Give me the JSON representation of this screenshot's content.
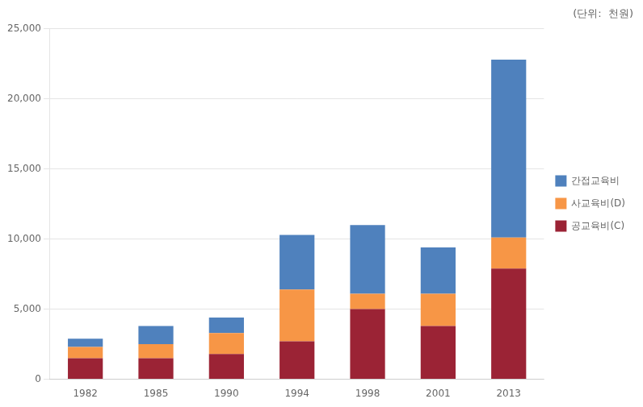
{
  "chart_data": {
    "type": "bar",
    "subtitle": "(단위:  천원)",
    "categories": [
      "1982",
      "1985",
      "1990",
      "1994",
      "1998",
      "2001",
      "2013"
    ],
    "series": [
      {
        "name": "공교육비(C)",
        "color": "#9B2335",
        "values": [
          1500,
          1500,
          1800,
          2700,
          5000,
          3800,
          7900
        ]
      },
      {
        "name": "사교육비(D)",
        "color": "#F79646",
        "values": [
          800,
          1000,
          1500,
          3700,
          1100,
          2300,
          2200
        ]
      },
      {
        "name": "간접교육비",
        "color": "#4F81BD",
        "values": [
          600,
          1300,
          1100,
          3900,
          4900,
          3300,
          12700
        ]
      }
    ],
    "stacked": true,
    "ylim": [
      0,
      25000
    ],
    "yticks": [
      0,
      {
        "value": 5000,
        "label": "5,000"
      },
      {
        "value": 10000,
        "label": "10,000"
      },
      {
        "value": 15000,
        "label": "15,000"
      },
      {
        "value": 20000,
        "label": "20,000"
      },
      {
        "value": 25000,
        "label": "25,000"
      }
    ],
    "grid": true,
    "legend": "right"
  }
}
